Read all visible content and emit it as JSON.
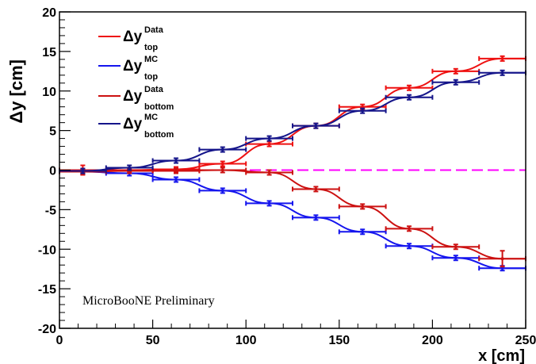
{
  "chart_data": {
    "type": "line",
    "title": "",
    "xlabel": "x [cm]",
    "ylabel": "Δy [cm]",
    "xlim": [
      0,
      250
    ],
    "ylim": [
      -20,
      20
    ],
    "xticks": [
      0,
      50,
      100,
      150,
      200,
      250
    ],
    "yticks": [
      -20,
      -15,
      -10,
      -5,
      0,
      5,
      10,
      15,
      20
    ],
    "grid": false,
    "legend_position": "top-left",
    "annotation": "MicroBooNE Preliminary",
    "reference_line": {
      "y": 0,
      "color": "#ff00ff",
      "style": "dashed"
    },
    "bin_halfwidth": 12.5,
    "series": [
      {
        "name": "Δy top Data",
        "label_main": "Δy",
        "label_sup": "Data",
        "label_sub": "top",
        "color": "#ee1111",
        "x": [
          12.5,
          37.5,
          62.5,
          87.5,
          112.5,
          137.5,
          162.5,
          187.5,
          212.5,
          237.5
        ],
        "y": [
          0.0,
          0.0,
          0.1,
          0.8,
          3.3,
          5.6,
          8.0,
          10.4,
          12.5,
          14.1
        ],
        "yerr": [
          0.6,
          0.1,
          0.1,
          0.1,
          0.2,
          0.2,
          0.2,
          0.2,
          0.2,
          0.2
        ]
      },
      {
        "name": "Δy top MC",
        "label_main": "Δy",
        "label_sup": "MC",
        "label_sub": "top",
        "color": "#1515ee",
        "x": [
          12.5,
          37.5,
          62.5,
          87.5,
          112.5,
          137.5,
          162.5,
          187.5,
          212.5,
          237.5
        ],
        "y": [
          -0.2,
          -0.4,
          -1.2,
          -2.6,
          -4.2,
          -6.0,
          -7.8,
          -9.6,
          -11.1,
          -12.4
        ],
        "yerr": [
          0.1,
          0.1,
          0.1,
          0.1,
          0.1,
          0.1,
          0.1,
          0.1,
          0.1,
          0.3
        ]
      },
      {
        "name": "Δy bottom Data",
        "label_main": "Δy",
        "label_sup": "Data",
        "label_sub": "bottom",
        "color": "#cc1111",
        "x": [
          12.5,
          37.5,
          62.5,
          87.5,
          112.5,
          137.5,
          162.5,
          187.5,
          212.5,
          237.5
        ],
        "y": [
          -0.2,
          -0.1,
          -0.1,
          0.0,
          -0.3,
          -2.4,
          -4.6,
          -7.4,
          -9.7,
          -11.2
        ],
        "yerr": [
          0.3,
          0.1,
          0.1,
          0.1,
          0.1,
          0.2,
          0.2,
          0.2,
          0.2,
          1.0
        ]
      },
      {
        "name": "Δy bottom MC",
        "label_main": "Δy",
        "label_sup": "MC",
        "label_sub": "bottom",
        "color": "#15158a",
        "x": [
          12.5,
          37.5,
          62.5,
          87.5,
          112.5,
          137.5,
          162.5,
          187.5,
          212.5,
          237.5
        ],
        "y": [
          -0.1,
          0.3,
          1.2,
          2.6,
          4.0,
          5.6,
          7.5,
          9.2,
          11.1,
          12.3
        ],
        "yerr": [
          0.1,
          0.1,
          0.1,
          0.1,
          0.1,
          0.1,
          0.1,
          0.1,
          0.1,
          0.1
        ]
      }
    ]
  }
}
